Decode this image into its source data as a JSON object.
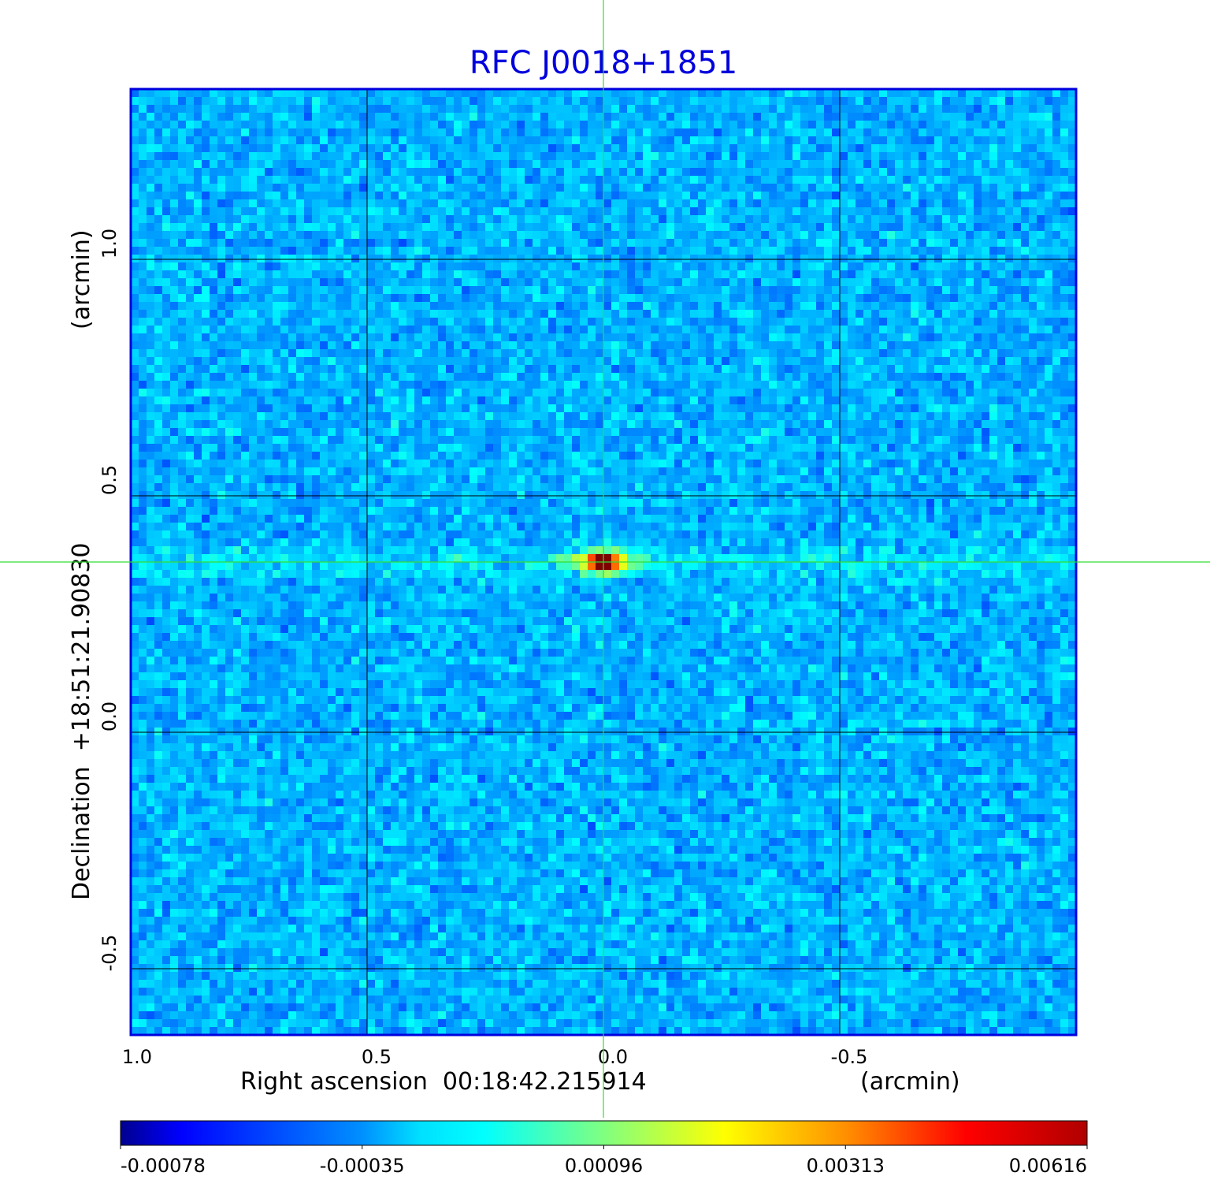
{
  "chart_data": {
    "type": "heatmap",
    "title": "RFC J0018+1851",
    "xlabel": "Right ascension  00:18:42.215914",
    "xunit": "(arcmin)",
    "ylabel": "Declination  +18:51:21.90830",
    "yunit": "(arcmin)",
    "xlim": [
      1.0,
      -1.0
    ],
    "ylim": [
      -0.64,
      1.36
    ],
    "xticks": [
      1.0,
      0.5,
      0.0,
      -0.5
    ],
    "xtick_labels": [
      "1.0",
      "0.5",
      "0.0",
      "-0.5"
    ],
    "yticks": [
      1.0,
      0.5,
      0.0,
      -0.5
    ],
    "ytick_labels": [
      "1.0",
      "0.5",
      "0.0",
      "-0.5"
    ],
    "grid": true,
    "crosshair": {
      "x": 0.0,
      "y": 0.36
    },
    "source": {
      "x": 0.0,
      "y": 0.36,
      "peak": 0.00616
    },
    "colormap": "jet",
    "colorbar": {
      "range": [
        -0.00078,
        0.00616
      ],
      "tick_labels": [
        "-0.00078",
        "-0.00035",
        "0.00096",
        "0.00313",
        "0.00616"
      ],
      "placement": "bottom"
    },
    "colors": {
      "title": "#0000dd",
      "frame": "#0000dd",
      "crosshair": "#33dd33",
      "grid": "#000000"
    }
  }
}
